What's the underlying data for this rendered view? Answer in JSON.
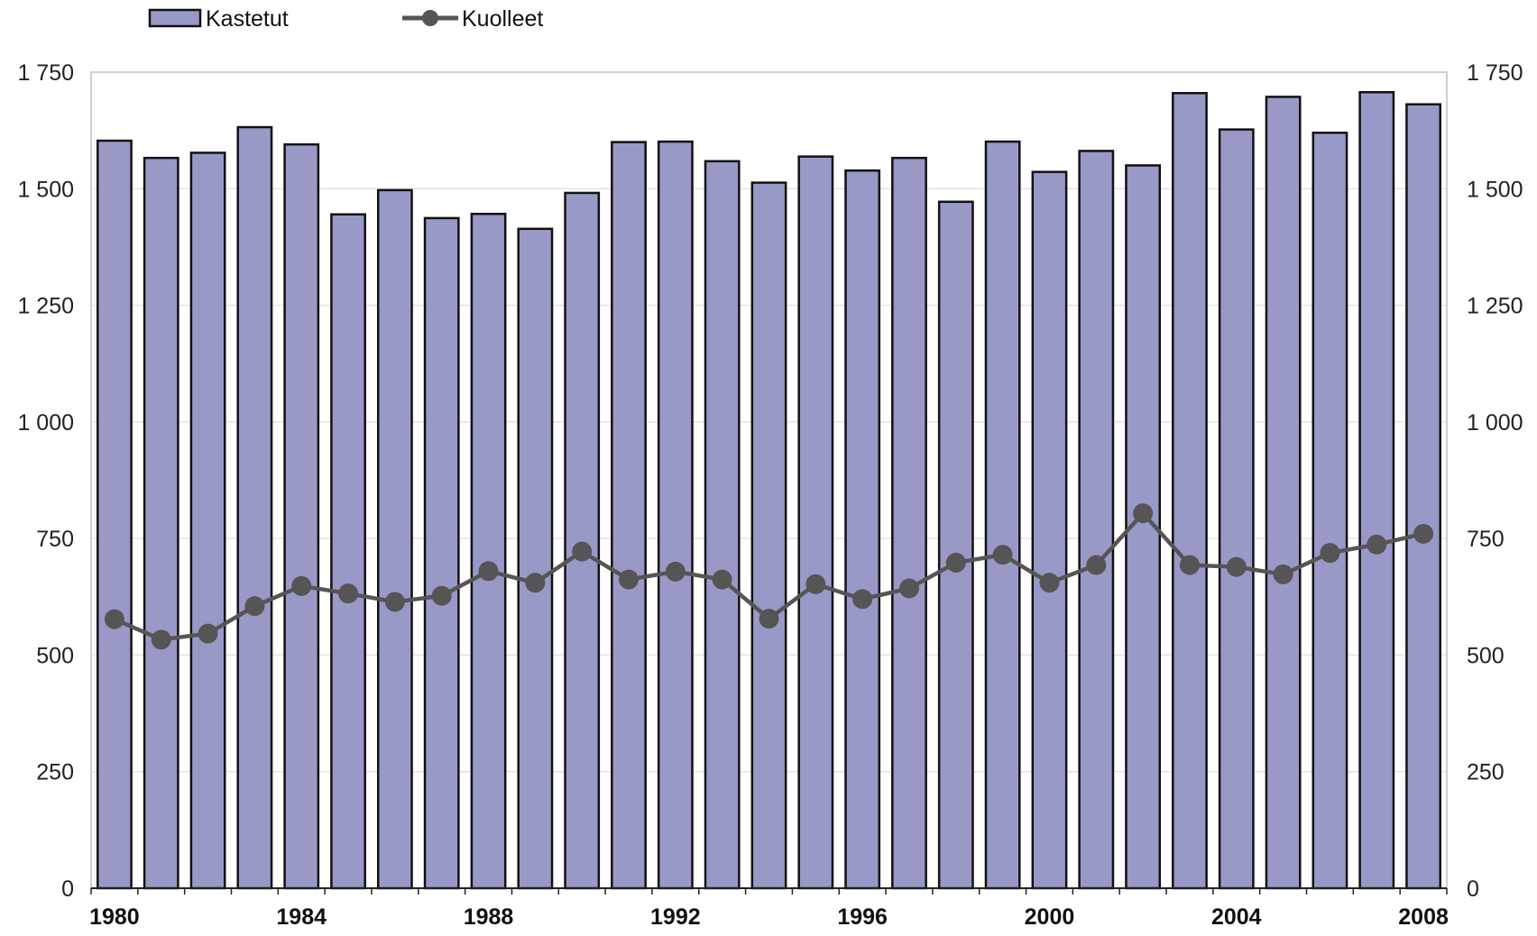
{
  "chart_data": {
    "type": "bar",
    "categories": [
      "1980",
      "1981",
      "1982",
      "1983",
      "1984",
      "1985",
      "1986",
      "1987",
      "1988",
      "1989",
      "1990",
      "1991",
      "1992",
      "1993",
      "1994",
      "1995",
      "1996",
      "1997",
      "1998",
      "1999",
      "2000",
      "2001",
      "2002",
      "2003",
      "2004",
      "2005",
      "2006",
      "2007",
      "2008"
    ],
    "x_tick_labels": [
      "1980",
      "1984",
      "1988",
      "1992",
      "1996",
      "2000",
      "2004",
      "2008"
    ],
    "y_ticks": [
      0,
      250,
      500,
      750,
      1000,
      1250,
      1500,
      1750
    ],
    "y_tick_labels": [
      "0",
      "250",
      "500",
      "750",
      "1 000",
      "1 250",
      "1 500",
      "1 750"
    ],
    "ylim": [
      0,
      1750
    ],
    "grid": true,
    "legend_position": "top-left",
    "series": [
      {
        "name": "Kastetut",
        "type": "bar",
        "color": "#9999c8",
        "values": [
          1603,
          1566,
          1577,
          1632,
          1595,
          1445,
          1497,
          1437,
          1446,
          1414,
          1491,
          1600,
          1601,
          1559,
          1513,
          1569,
          1539,
          1566,
          1472,
          1601,
          1536,
          1581,
          1550,
          1705,
          1627,
          1697,
          1620,
          1707,
          1681
        ]
      },
      {
        "name": "Kuolleet",
        "type": "line",
        "color": "#555555",
        "values": [
          577,
          533,
          546,
          605,
          648,
          632,
          614,
          627,
          680,
          655,
          722,
          662,
          679,
          662,
          578,
          652,
          620,
          643,
          698,
          715,
          655,
          693,
          804,
          693,
          689,
          673,
          719,
          737,
          760
        ]
      }
    ]
  }
}
